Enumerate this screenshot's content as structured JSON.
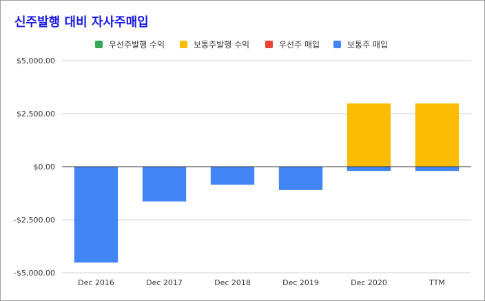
{
  "chart_data": {
    "type": "bar",
    "stacked": true,
    "title": "신주발행 대비 자사주매입",
    "categories": [
      "Dec 2016",
      "Dec 2017",
      "Dec 2018",
      "Dec 2019",
      "Dec 2020",
      "TTM"
    ],
    "series": [
      {
        "name": "우선주발행 수익",
        "color": "#34a853",
        "values": [
          0,
          0,
          0,
          0,
          0,
          0
        ]
      },
      {
        "name": "보통주발행 수익",
        "color": "#fbbc04",
        "values": [
          0,
          0,
          0,
          0,
          2980,
          2980
        ]
      },
      {
        "name": "우선주 매입",
        "color": "#ea4335",
        "values": [
          0,
          0,
          0,
          0,
          0,
          0
        ]
      },
      {
        "name": "보통주 매입",
        "color": "#4285f4",
        "values": [
          -4520,
          -1640,
          -850,
          -1100,
          -200,
          -200
        ]
      }
    ],
    "ylim": [
      -5000,
      5000
    ],
    "yticks": [
      "$5,000.00",
      "$2,500.00",
      "$0.00",
      "-$2,500.00",
      "-$5,000.00"
    ],
    "ytick_values": [
      5000,
      2500,
      0,
      -2500,
      -5000
    ],
    "grid": true,
    "legend_position": "top"
  }
}
